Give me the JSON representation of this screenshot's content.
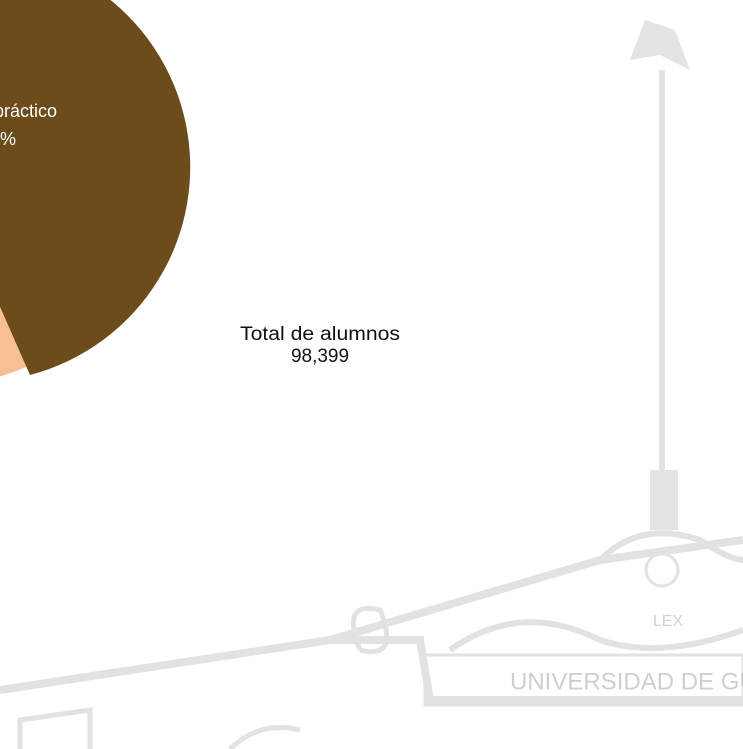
{
  "pie": {
    "slice_label": "práctico",
    "slice_percent": "%"
  },
  "total": {
    "label": "Total de alumnos",
    "value": "98,399"
  },
  "watermark": {
    "motto": "LEX",
    "name": "UNIVERSIDAD DE GUA"
  }
}
